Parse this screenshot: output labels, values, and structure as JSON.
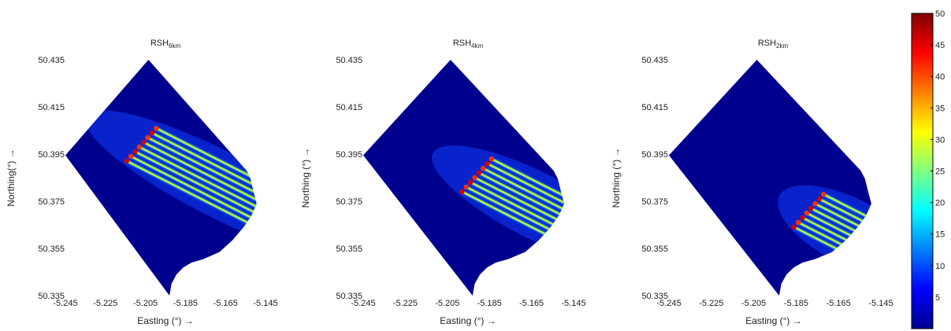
{
  "chart_data": {
    "type": "heatmap",
    "x_ticks": [
      "-5.245",
      "-5.225",
      "-5.205",
      "-5.185",
      "-5.165",
      "-5.145"
    ],
    "y_ticks": [
      "50.435",
      "50.415",
      "50.395",
      "50.375",
      "50.355",
      "50.335"
    ],
    "xlim": [
      -5.245,
      -5.145
    ],
    "ylim": [
      50.335,
      50.435
    ],
    "grid": false,
    "colorbar": {
      "min": 0,
      "max": 50,
      "ticks": [
        "5",
        "10",
        "15",
        "20",
        "25",
        "30",
        "35",
        "40",
        "45",
        "50"
      ],
      "colormap": "jet"
    },
    "panels": [
      {
        "title_main": "RSH",
        "title_sub": "6km",
        "xlabel": "Easting (°) →",
        "ylabel": "Northing(°) →",
        "array_center": [
          -5.207,
          50.399
        ],
        "trail_length": 0.048
      },
      {
        "title_main": "RSH",
        "title_sub": "4km",
        "xlabel": "Easting (°) →",
        "ylabel": "Northing (°) →",
        "array_center": [
          -5.191,
          50.386
        ],
        "trail_length": 0.036
      },
      {
        "title_main": "RSH",
        "title_sub": "2km",
        "xlabel": "Easting (°) →",
        "ylabel": "Northing (°) →",
        "array_center": [
          -5.179,
          50.371
        ],
        "trail_length": 0.024
      }
    ],
    "domain_polygon": [
      [
        -5.245,
        50.3945
      ],
      [
        -5.2035,
        50.435
      ],
      [
        -5.1545,
        50.388
      ],
      [
        -5.1525,
        50.3845
      ],
      [
        -5.151,
        50.379
      ],
      [
        -5.1495,
        50.374
      ],
      [
        -5.152,
        50.369
      ],
      [
        -5.156,
        50.364
      ],
      [
        -5.1615,
        50.3585
      ],
      [
        -5.168,
        50.3535
      ],
      [
        -5.176,
        50.3505
      ],
      [
        -5.182,
        50.349
      ],
      [
        -5.186,
        50.347
      ],
      [
        -5.1895,
        50.344
      ],
      [
        -5.192,
        50.34
      ],
      [
        -5.193,
        50.335
      ]
    ]
  }
}
